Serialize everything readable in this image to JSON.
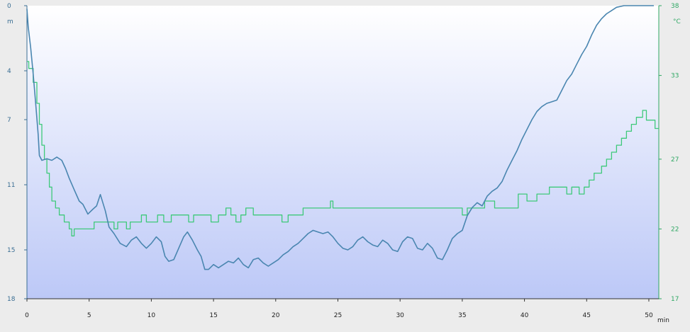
{
  "chart_data": {
    "type": "line",
    "x_unit": "min",
    "left_unit": "m",
    "right_unit": "°C",
    "x_ticks": [
      0,
      5,
      10,
      15,
      20,
      25,
      30,
      35,
      40,
      45,
      50
    ],
    "left_ticks": [
      0,
      4,
      7,
      11,
      15,
      18
    ],
    "right_ticks": [
      38,
      33,
      27,
      22,
      17
    ],
    "xlim": [
      0,
      50.8
    ],
    "left_ylim": [
      0,
      18
    ],
    "right_ylim": [
      17,
      38
    ],
    "left_axis_inverted": true,
    "colors": {
      "depth_line": "#4a86b0",
      "temperature_line": "#3ec97a",
      "bg_top": "#ffffff",
      "bg_bottom": "#bcc8f7",
      "left_axis": "#3a6e93",
      "right_axis": "#2fa864"
    },
    "series": [
      {
        "axis": "left",
        "points": [
          [
            0,
            0.2
          ],
          [
            0.1,
            1.3
          ],
          [
            0.3,
            2.6
          ],
          [
            0.5,
            4.2
          ],
          [
            0.7,
            6.0
          ],
          [
            0.9,
            7.9
          ],
          [
            1.0,
            9.2
          ],
          [
            1.2,
            9.5
          ],
          [
            1.6,
            9.4
          ],
          [
            2.0,
            9.5
          ],
          [
            2.4,
            9.3
          ],
          [
            2.8,
            9.5
          ],
          [
            3.1,
            10.0
          ],
          [
            3.4,
            10.6
          ],
          [
            3.8,
            11.3
          ],
          [
            4.2,
            12.0
          ],
          [
            4.5,
            12.2
          ],
          [
            4.9,
            12.8
          ],
          [
            5.3,
            12.5
          ],
          [
            5.6,
            12.3
          ],
          [
            5.9,
            11.6
          ],
          [
            6.3,
            12.6
          ],
          [
            6.6,
            13.6
          ],
          [
            7.0,
            14.0
          ],
          [
            7.5,
            14.6
          ],
          [
            8.0,
            14.8
          ],
          [
            8.4,
            14.4
          ],
          [
            8.8,
            14.2
          ],
          [
            9.2,
            14.6
          ],
          [
            9.6,
            14.9
          ],
          [
            10.0,
            14.6
          ],
          [
            10.4,
            14.2
          ],
          [
            10.8,
            14.5
          ],
          [
            11.1,
            15.4
          ],
          [
            11.4,
            15.7
          ],
          [
            11.8,
            15.6
          ],
          [
            12.2,
            14.9
          ],
          [
            12.6,
            14.2
          ],
          [
            12.9,
            13.9
          ],
          [
            13.3,
            14.4
          ],
          [
            13.7,
            15.0
          ],
          [
            14.0,
            15.4
          ],
          [
            14.3,
            16.2
          ],
          [
            14.6,
            16.2
          ],
          [
            15.0,
            15.9
          ],
          [
            15.4,
            16.1
          ],
          [
            15.8,
            15.9
          ],
          [
            16.2,
            15.7
          ],
          [
            16.6,
            15.8
          ],
          [
            17.0,
            15.5
          ],
          [
            17.4,
            15.9
          ],
          [
            17.8,
            16.1
          ],
          [
            18.2,
            15.6
          ],
          [
            18.6,
            15.5
          ],
          [
            19.0,
            15.8
          ],
          [
            19.4,
            16.0
          ],
          [
            19.8,
            15.8
          ],
          [
            20.2,
            15.6
          ],
          [
            20.6,
            15.3
          ],
          [
            21.0,
            15.1
          ],
          [
            21.4,
            14.8
          ],
          [
            21.8,
            14.6
          ],
          [
            22.2,
            14.3
          ],
          [
            22.6,
            14.0
          ],
          [
            23.0,
            13.8
          ],
          [
            23.4,
            13.9
          ],
          [
            23.8,
            14.0
          ],
          [
            24.2,
            13.9
          ],
          [
            24.6,
            14.2
          ],
          [
            25.0,
            14.6
          ],
          [
            25.4,
            14.9
          ],
          [
            25.8,
            15.0
          ],
          [
            26.2,
            14.8
          ],
          [
            26.6,
            14.4
          ],
          [
            27.0,
            14.2
          ],
          [
            27.4,
            14.5
          ],
          [
            27.8,
            14.7
          ],
          [
            28.2,
            14.8
          ],
          [
            28.6,
            14.4
          ],
          [
            29.0,
            14.6
          ],
          [
            29.4,
            15.0
          ],
          [
            29.8,
            15.1
          ],
          [
            30.2,
            14.5
          ],
          [
            30.6,
            14.2
          ],
          [
            31.0,
            14.3
          ],
          [
            31.4,
            14.9
          ],
          [
            31.8,
            15.0
          ],
          [
            32.2,
            14.6
          ],
          [
            32.6,
            14.9
          ],
          [
            33.0,
            15.5
          ],
          [
            33.4,
            15.6
          ],
          [
            33.8,
            15.0
          ],
          [
            34.2,
            14.3
          ],
          [
            34.6,
            14.0
          ],
          [
            35.0,
            13.8
          ],
          [
            35.4,
            12.9
          ],
          [
            35.8,
            12.4
          ],
          [
            36.2,
            12.1
          ],
          [
            36.6,
            12.3
          ],
          [
            37.0,
            11.7
          ],
          [
            37.4,
            11.4
          ],
          [
            37.8,
            11.2
          ],
          [
            38.2,
            10.8
          ],
          [
            38.6,
            10.1
          ],
          [
            39.0,
            9.5
          ],
          [
            39.4,
            8.9
          ],
          [
            39.8,
            8.2
          ],
          [
            40.2,
            7.6
          ],
          [
            40.6,
            7.0
          ],
          [
            41.0,
            6.5
          ],
          [
            41.4,
            6.2
          ],
          [
            41.8,
            6.0
          ],
          [
            42.2,
            5.9
          ],
          [
            42.6,
            5.8
          ],
          [
            43.0,
            5.2
          ],
          [
            43.4,
            4.6
          ],
          [
            43.8,
            4.2
          ],
          [
            44.2,
            3.6
          ],
          [
            44.6,
            3.0
          ],
          [
            45.0,
            2.5
          ],
          [
            45.4,
            1.8
          ],
          [
            45.8,
            1.2
          ],
          [
            46.2,
            0.8
          ],
          [
            46.6,
            0.5
          ],
          [
            47.0,
            0.3
          ],
          [
            47.4,
            0.1
          ],
          [
            48.0,
            0.0
          ],
          [
            48.6,
            0.0
          ],
          [
            49.2,
            0.0
          ],
          [
            49.8,
            0.0
          ],
          [
            50.4,
            0.0
          ]
        ]
      },
      {
        "axis": "right",
        "points": [
          [
            0,
            34.0
          ],
          [
            0.15,
            34.0
          ],
          [
            0.15,
            33.5
          ],
          [
            0.5,
            33.5
          ],
          [
            0.5,
            32.5
          ],
          [
            0.8,
            32.5
          ],
          [
            0.8,
            31.0
          ],
          [
            1.0,
            31.0
          ],
          [
            1.0,
            29.5
          ],
          [
            1.2,
            29.5
          ],
          [
            1.2,
            28.0
          ],
          [
            1.4,
            28.0
          ],
          [
            1.4,
            27.0
          ],
          [
            1.6,
            27.0
          ],
          [
            1.6,
            26.0
          ],
          [
            1.8,
            26.0
          ],
          [
            1.8,
            25.0
          ],
          [
            2.0,
            25.0
          ],
          [
            2.0,
            24.0
          ],
          [
            2.3,
            24.0
          ],
          [
            2.3,
            23.5
          ],
          [
            2.6,
            23.5
          ],
          [
            2.6,
            23.0
          ],
          [
            3.0,
            23.0
          ],
          [
            3.0,
            22.5
          ],
          [
            3.4,
            22.5
          ],
          [
            3.4,
            22.0
          ],
          [
            3.6,
            22.0
          ],
          [
            3.6,
            21.5
          ],
          [
            3.8,
            21.5
          ],
          [
            3.8,
            22.0
          ],
          [
            5.4,
            22.0
          ],
          [
            5.4,
            22.5
          ],
          [
            7.0,
            22.5
          ],
          [
            7.0,
            22.0
          ],
          [
            7.3,
            22.0
          ],
          [
            7.3,
            22.5
          ],
          [
            8.0,
            22.5
          ],
          [
            8.0,
            22.0
          ],
          [
            8.3,
            22.0
          ],
          [
            8.3,
            22.5
          ],
          [
            9.2,
            22.5
          ],
          [
            9.2,
            23.0
          ],
          [
            9.6,
            23.0
          ],
          [
            9.6,
            22.5
          ],
          [
            10.5,
            22.5
          ],
          [
            10.5,
            23.0
          ],
          [
            11.0,
            23.0
          ],
          [
            11.0,
            22.5
          ],
          [
            11.6,
            22.5
          ],
          [
            11.6,
            23.0
          ],
          [
            13.0,
            23.0
          ],
          [
            13.0,
            22.5
          ],
          [
            13.4,
            22.5
          ],
          [
            13.4,
            23.0
          ],
          [
            14.8,
            23.0
          ],
          [
            14.8,
            22.5
          ],
          [
            15.4,
            22.5
          ],
          [
            15.4,
            23.0
          ],
          [
            16.0,
            23.0
          ],
          [
            16.0,
            23.5
          ],
          [
            16.4,
            23.5
          ],
          [
            16.4,
            23.0
          ],
          [
            16.8,
            23.0
          ],
          [
            16.8,
            22.5
          ],
          [
            17.2,
            22.5
          ],
          [
            17.2,
            23.0
          ],
          [
            17.6,
            23.0
          ],
          [
            17.6,
            23.5
          ],
          [
            18.2,
            23.5
          ],
          [
            18.2,
            23.0
          ],
          [
            20.5,
            23.0
          ],
          [
            20.5,
            22.5
          ],
          [
            21.0,
            22.5
          ],
          [
            21.0,
            23.0
          ],
          [
            22.2,
            23.0
          ],
          [
            22.2,
            23.5
          ],
          [
            24.4,
            23.5
          ],
          [
            24.4,
            24.0
          ],
          [
            24.6,
            24.0
          ],
          [
            24.6,
            23.5
          ],
          [
            35.0,
            23.5
          ],
          [
            35.0,
            23.0
          ],
          [
            35.4,
            23.0
          ],
          [
            35.4,
            23.5
          ],
          [
            36.8,
            23.5
          ],
          [
            36.8,
            24.0
          ],
          [
            37.6,
            24.0
          ],
          [
            37.6,
            23.5
          ],
          [
            39.5,
            23.5
          ],
          [
            39.5,
            24.5
          ],
          [
            40.2,
            24.5
          ],
          [
            40.2,
            24.0
          ],
          [
            41.0,
            24.0
          ],
          [
            41.0,
            24.5
          ],
          [
            42.0,
            24.5
          ],
          [
            42.0,
            25.0
          ],
          [
            43.4,
            25.0
          ],
          [
            43.4,
            24.5
          ],
          [
            43.8,
            24.5
          ],
          [
            43.8,
            25.0
          ],
          [
            44.4,
            25.0
          ],
          [
            44.4,
            24.5
          ],
          [
            44.8,
            24.5
          ],
          [
            44.8,
            25.0
          ],
          [
            45.2,
            25.0
          ],
          [
            45.2,
            25.5
          ],
          [
            45.6,
            25.5
          ],
          [
            45.6,
            26.0
          ],
          [
            46.2,
            26.0
          ],
          [
            46.2,
            26.5
          ],
          [
            46.6,
            26.5
          ],
          [
            46.6,
            27.0
          ],
          [
            47.0,
            27.0
          ],
          [
            47.0,
            27.5
          ],
          [
            47.4,
            27.5
          ],
          [
            47.4,
            28.0
          ],
          [
            47.8,
            28.0
          ],
          [
            47.8,
            28.5
          ],
          [
            48.2,
            28.5
          ],
          [
            48.2,
            29.0
          ],
          [
            48.6,
            29.0
          ],
          [
            48.6,
            29.5
          ],
          [
            49.0,
            29.5
          ],
          [
            49.0,
            30.0
          ],
          [
            49.5,
            30.0
          ],
          [
            49.5,
            30.5
          ],
          [
            49.8,
            30.5
          ],
          [
            49.8,
            29.8
          ],
          [
            50.5,
            29.8
          ],
          [
            50.5,
            29.2
          ],
          [
            50.8,
            29.2
          ]
        ]
      }
    ]
  }
}
